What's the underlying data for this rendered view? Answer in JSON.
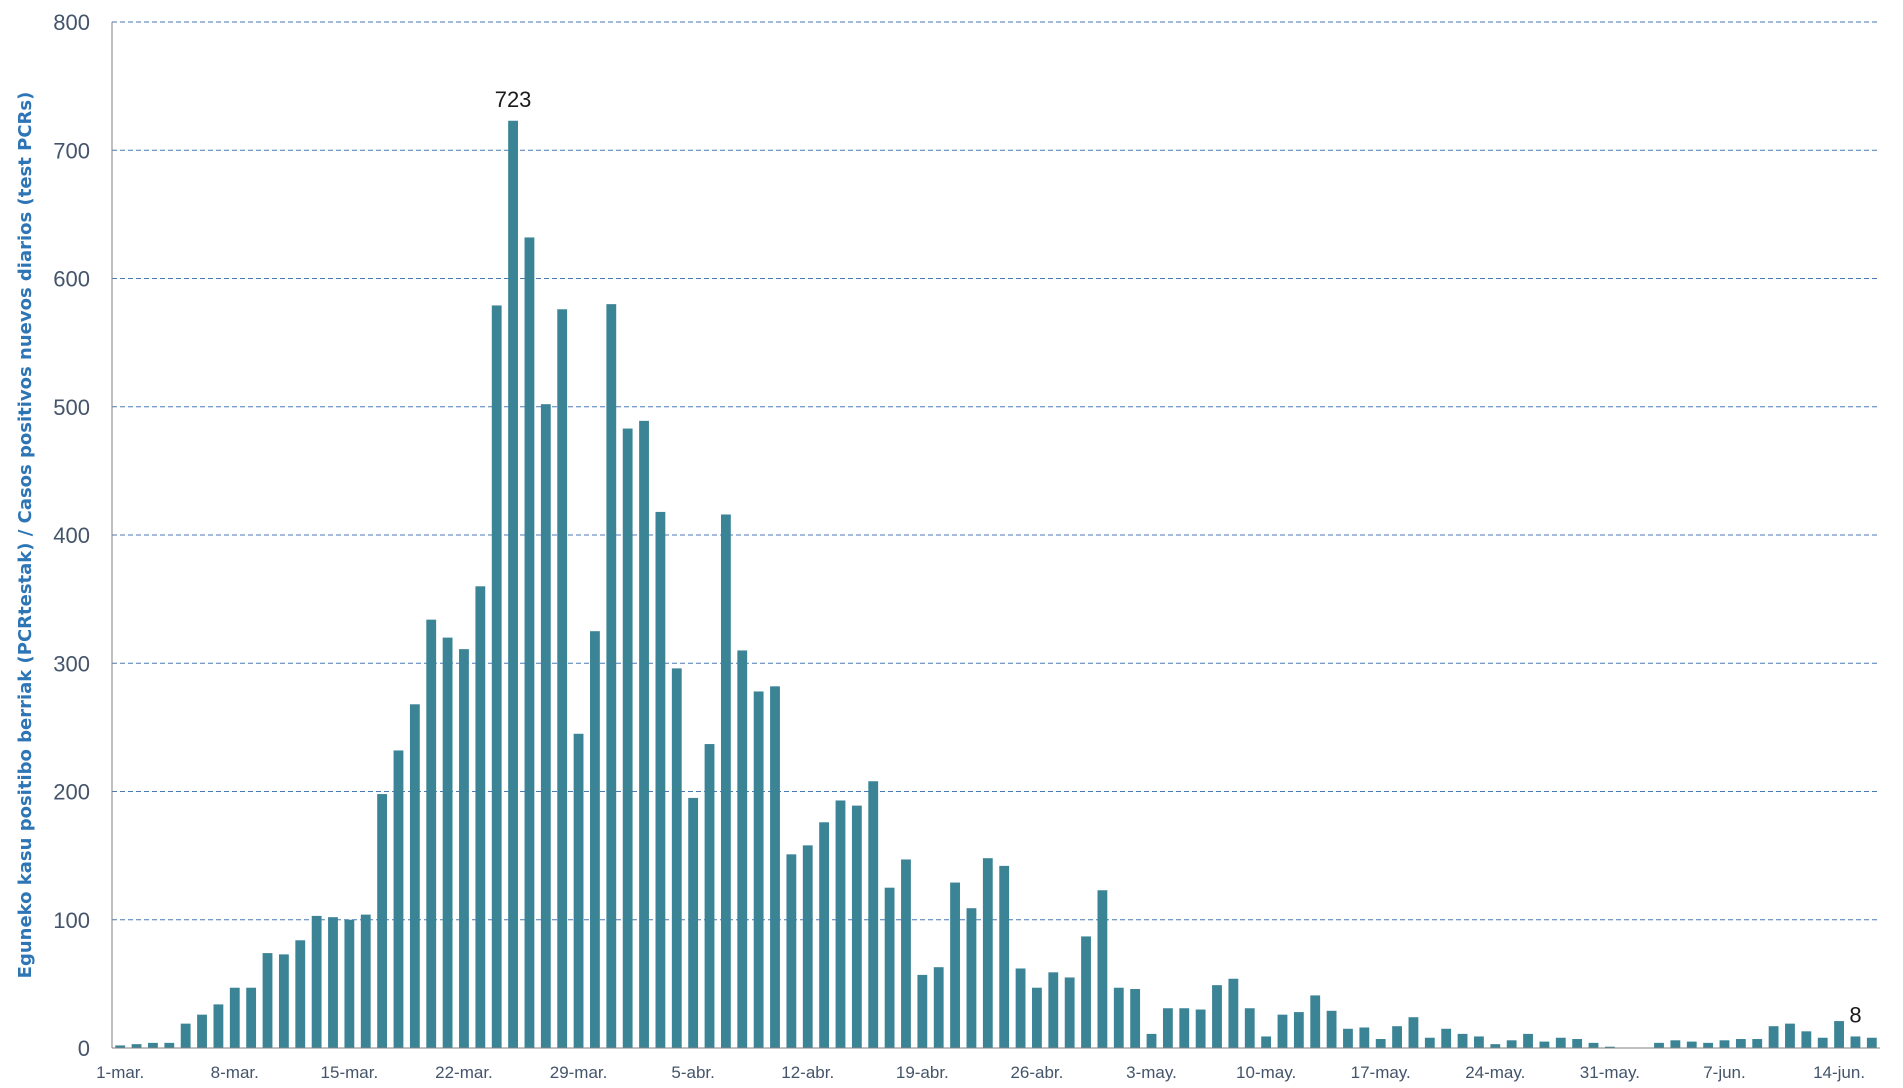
{
  "chart_data": {
    "type": "bar",
    "title": "",
    "xlabel": "",
    "ylabel": "Eguneko kasu positibo berriak  (PCRtestak) / Casos positivos nuevos diarios (test PCRs)",
    "ylim": [
      0,
      800
    ],
    "yticks": [
      0,
      100,
      200,
      300,
      400,
      500,
      600,
      700,
      800
    ],
    "grid": "horizontal-dashed",
    "bar_color": "#3b8496",
    "grid_color": "#4a7ab5",
    "x_tick_labels": [
      "1-mar.",
      "8-mar.",
      "15-mar.",
      "22-mar.",
      "29-mar.",
      "5-abr.",
      "12-abr.",
      "19-abr.",
      "26-abr.",
      "3-may.",
      "10-may.",
      "17-may.",
      "24-may.",
      "31-may.",
      "7-jun.",
      "14-jun."
    ],
    "x_tick_interval_days": 7,
    "first_date": "1-mar.",
    "values": [
      2,
      3,
      4,
      4,
      19,
      26,
      34,
      47,
      47,
      74,
      73,
      84,
      103,
      102,
      100,
      104,
      198,
      232,
      268,
      334,
      320,
      311,
      360,
      579,
      723,
      632,
      502,
      576,
      245,
      325,
      580,
      483,
      489,
      418,
      296,
      195,
      237,
      416,
      310,
      278,
      282,
      151,
      158,
      176,
      193,
      189,
      208,
      125,
      147,
      57,
      63,
      129,
      109,
      148,
      142,
      62,
      47,
      59,
      55,
      87,
      123,
      47,
      46,
      11,
      31,
      31,
      30,
      49,
      54,
      31,
      9,
      26,
      28,
      41,
      29,
      15,
      16,
      7,
      17,
      24,
      8,
      15,
      11,
      9,
      3,
      6,
      11,
      5,
      8,
      7,
      4,
      1,
      0,
      0,
      4,
      6,
      5,
      4,
      6,
      7,
      7,
      17,
      19,
      13,
      8,
      21,
      9,
      8
    ],
    "annotations": [
      {
        "index": 24,
        "text": "723"
      },
      {
        "index": 106,
        "text": "8"
      }
    ]
  }
}
